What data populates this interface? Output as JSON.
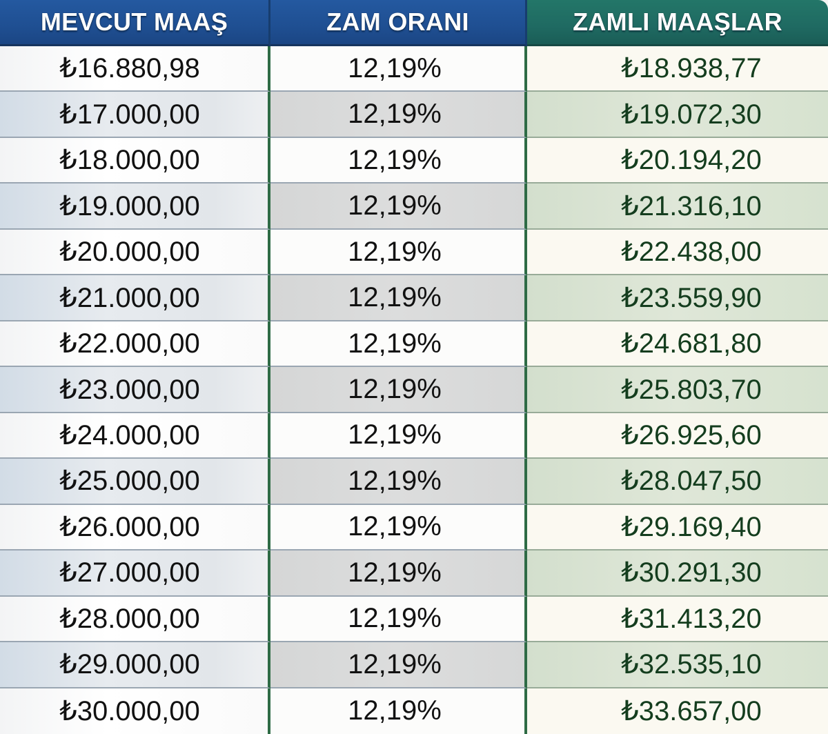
{
  "table": {
    "headers": [
      "MEVCUT MAAŞ",
      "ZAM ORANI",
      "ZAMLI MAAŞLAR"
    ],
    "rows": [
      [
        "₺16.880,98",
        "12,19%",
        "₺18.938,77"
      ],
      [
        "₺17.000,00",
        "12,19%",
        "₺19.072,30"
      ],
      [
        "₺18.000,00",
        "12,19%",
        "₺20.194,20"
      ],
      [
        "₺19.000,00",
        "12,19%",
        "₺21.316,10"
      ],
      [
        "₺20.000,00",
        "12,19%",
        "₺22.438,00"
      ],
      [
        "₺21.000,00",
        "12,19%",
        "₺23.559,90"
      ],
      [
        "₺22.000,00",
        "12,19%",
        "₺24.681,80"
      ],
      [
        "₺23.000,00",
        "12,19%",
        "₺25.803,70"
      ],
      [
        "₺24.000,00",
        "12,19%",
        "₺26.925,60"
      ],
      [
        "₺25.000,00",
        "12,19%",
        "₺28.047,50"
      ],
      [
        "₺26.000,00",
        "12,19%",
        "₺29.169,40"
      ],
      [
        "₺27.000,00",
        "12,19%",
        "₺30.291,30"
      ],
      [
        "₺28.000,00",
        "12,19%",
        "₺31.413,20"
      ],
      [
        "₺29.000,00",
        "12,19%",
        "₺32.535,10"
      ],
      [
        "₺30.000,00",
        "12,19%",
        "₺33.657,00"
      ]
    ]
  },
  "colors": {
    "header_blue": "#1f4f92",
    "header_teal": "#1f6a62",
    "column_separator": "#2e6b45",
    "raised_salary_text": "#143d1e"
  }
}
